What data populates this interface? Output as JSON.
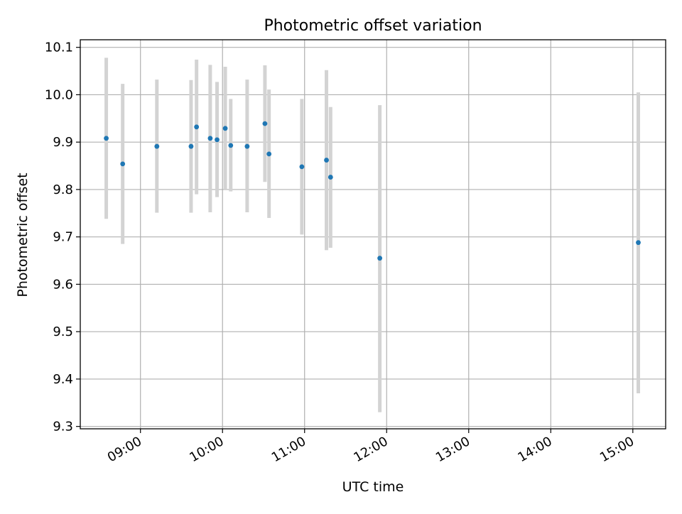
{
  "chart_data": {
    "type": "scatter",
    "title": "Photometric offset variation",
    "xlabel": "UTC time",
    "ylabel": "Photometric offset",
    "x_unit": "time of day (UTC)",
    "xlim": [
      "08:16",
      "15:24"
    ],
    "ylim": [
      9.295,
      10.116
    ],
    "x_ticks": [
      "09:00",
      "10:00",
      "11:00",
      "12:00",
      "13:00",
      "14:00",
      "15:00"
    ],
    "y_ticks": [
      "9.3",
      "9.4",
      "9.5",
      "9.6",
      "9.7",
      "9.8",
      "9.9",
      "10.0",
      "10.1"
    ],
    "grid": true,
    "point_color": "#1f77b4",
    "errorbar_color": "#d3d3d3",
    "points": [
      {
        "x": "08:35",
        "y": 9.908,
        "lo": 9.738,
        "hi": 10.078
      },
      {
        "x": "08:47",
        "y": 9.854,
        "lo": 9.685,
        "hi": 10.023
      },
      {
        "x": "09:12",
        "y": 9.891,
        "lo": 9.751,
        "hi": 10.032
      },
      {
        "x": "09:37",
        "y": 9.891,
        "lo": 9.751,
        "hi": 10.031
      },
      {
        "x": "09:41",
        "y": 9.932,
        "lo": 9.79,
        "hi": 10.074
      },
      {
        "x": "09:51",
        "y": 9.908,
        "lo": 9.752,
        "hi": 10.063
      },
      {
        "x": "09:56",
        "y": 9.905,
        "lo": 9.784,
        "hi": 10.027
      },
      {
        "x": "10:02",
        "y": 9.929,
        "lo": 9.8,
        "hi": 10.059
      },
      {
        "x": "10:06",
        "y": 9.893,
        "lo": 9.796,
        "hi": 9.991
      },
      {
        "x": "10:18",
        "y": 9.891,
        "lo": 9.752,
        "hi": 10.032
      },
      {
        "x": "10:31",
        "y": 9.939,
        "lo": 9.816,
        "hi": 10.062
      },
      {
        "x": "10:34",
        "y": 9.875,
        "lo": 9.74,
        "hi": 10.011
      },
      {
        "x": "10:58",
        "y": 9.848,
        "lo": 9.705,
        "hi": 9.991
      },
      {
        "x": "11:16",
        "y": 9.862,
        "lo": 9.672,
        "hi": 10.052
      },
      {
        "x": "11:19",
        "y": 9.826,
        "lo": 9.677,
        "hi": 9.974
      },
      {
        "x": "11:55",
        "y": 9.655,
        "lo": 9.33,
        "hi": 9.978
      },
      {
        "x": "15:04",
        "y": 9.688,
        "lo": 9.37,
        "hi": 10.005
      }
    ]
  }
}
